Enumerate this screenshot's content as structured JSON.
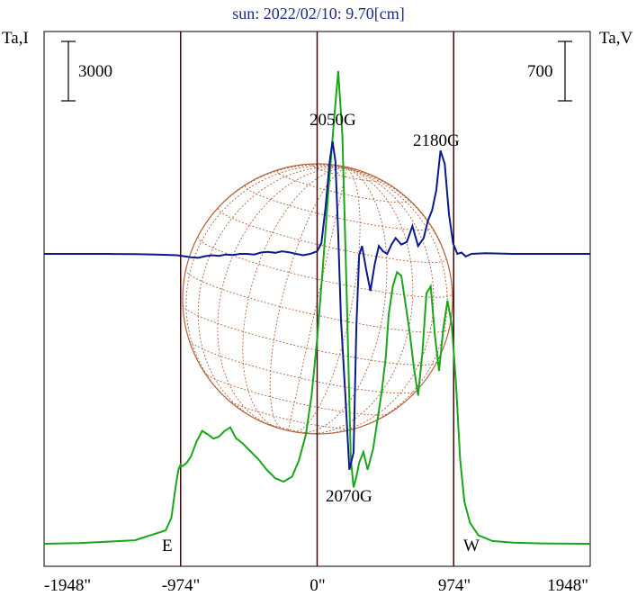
{
  "chart_data": {
    "type": "line",
    "title": "sun: 2022/02/10: 9.70[cm]",
    "left_axis_label": "Ta,I",
    "right_axis_label": "Ta,V",
    "left_scale_bar": "3000",
    "right_scale_bar": "700",
    "x_tick_labels": [
      "-1948\"",
      "-974\"",
      "0\"",
      "974\"",
      "1948\""
    ],
    "xlim": [
      -1948,
      1948
    ],
    "limb_markers": [
      "E",
      "W"
    ],
    "annotations": [
      "2050G",
      "2180G",
      "2070G"
    ],
    "colors": {
      "stokes_i": "#1aa51a",
      "stokes_v": "#0a1a8c",
      "disk_grid": "#b4643c",
      "vertical_lines": "#3a0a0a",
      "title": "#1b2a8a"
    },
    "series": [
      {
        "color": "green",
        "x": [
          -1948,
          -1700,
          -1300,
          -1080,
          -1040,
          -1010,
          -990,
          -975,
          -960,
          -930,
          -900,
          -860,
          -820,
          -780,
          -740,
          -700,
          -660,
          -620,
          -580,
          -530,
          -480,
          -420,
          -360,
          -300,
          -240,
          -180,
          -130,
          -80,
          -40,
          0,
          40,
          80,
          120,
          150,
          180,
          210,
          240,
          260,
          280,
          300,
          330,
          360,
          400,
          430,
          460,
          490,
          510,
          540,
          570,
          600,
          630,
          660,
          690,
          720,
          750,
          780,
          810,
          840,
          870,
          900,
          930,
          960,
          990,
          1020,
          1050,
          1090,
          1150,
          1250,
          1400,
          1600,
          1948
        ],
        "y": [
          0,
          10,
          50,
          190,
          370,
          800,
          1050,
          1120,
          1100,
          1150,
          1240,
          1450,
          1600,
          1550,
          1490,
          1520,
          1600,
          1650,
          1500,
          1420,
          1320,
          1200,
          1050,
          930,
          880,
          950,
          1180,
          1550,
          2100,
          2900,
          3900,
          5000,
          6000,
          6700,
          5800,
          3600,
          1200,
          800,
          950,
          1150,
          1300,
          1050,
          1350,
          1750,
          2150,
          2650,
          3250,
          3650,
          3850,
          3800,
          3400,
          3000,
          2500,
          2100,
          2700,
          3550,
          3650,
          2950,
          2450,
          3050,
          3450,
          3100,
          2300,
          1200,
          600,
          300,
          120,
          40,
          15,
          5,
          0
        ]
      },
      {
        "color": "blue",
        "x": [
          -1948,
          -1700,
          -1500,
          -1300,
          -1150,
          -1000,
          -950,
          -900,
          -850,
          -800,
          -750,
          -700,
          -650,
          -600,
          -550,
          -500,
          -450,
          -400,
          -350,
          -300,
          -250,
          -200,
          -150,
          -100,
          -50,
          0,
          30,
          60,
          90,
          110,
          130,
          150,
          170,
          200,
          230,
          260,
          280,
          300,
          320,
          350,
          380,
          410,
          440,
          470,
          500,
          530,
          560,
          600,
          640,
          680,
          720,
          760,
          790,
          820,
          850,
          880,
          910,
          940,
          970,
          1000,
          1030,
          1060,
          1100,
          1200,
          1400,
          1600,
          1948
        ],
        "y": [
          0,
          0,
          0,
          -2,
          -5,
          -10,
          -18,
          -25,
          -30,
          -18,
          -10,
          -15,
          -5,
          -8,
          0,
          0,
          -5,
          10,
          15,
          8,
          20,
          12,
          0,
          -10,
          0,
          20,
          80,
          350,
          700,
          850,
          700,
          150,
          -500,
          -1050,
          -1630,
          -1500,
          -550,
          -10,
          60,
          -120,
          -280,
          -80,
          60,
          20,
          0,
          70,
          120,
          70,
          90,
          210,
          60,
          120,
          250,
          330,
          480,
          780,
          680,
          300,
          80,
          0,
          10,
          -20,
          0,
          5,
          0,
          0,
          0
        ]
      }
    ],
    "ylim_green": [
      0,
      6700
    ],
    "ylim_blue": [
      -1700,
      900
    ]
  }
}
